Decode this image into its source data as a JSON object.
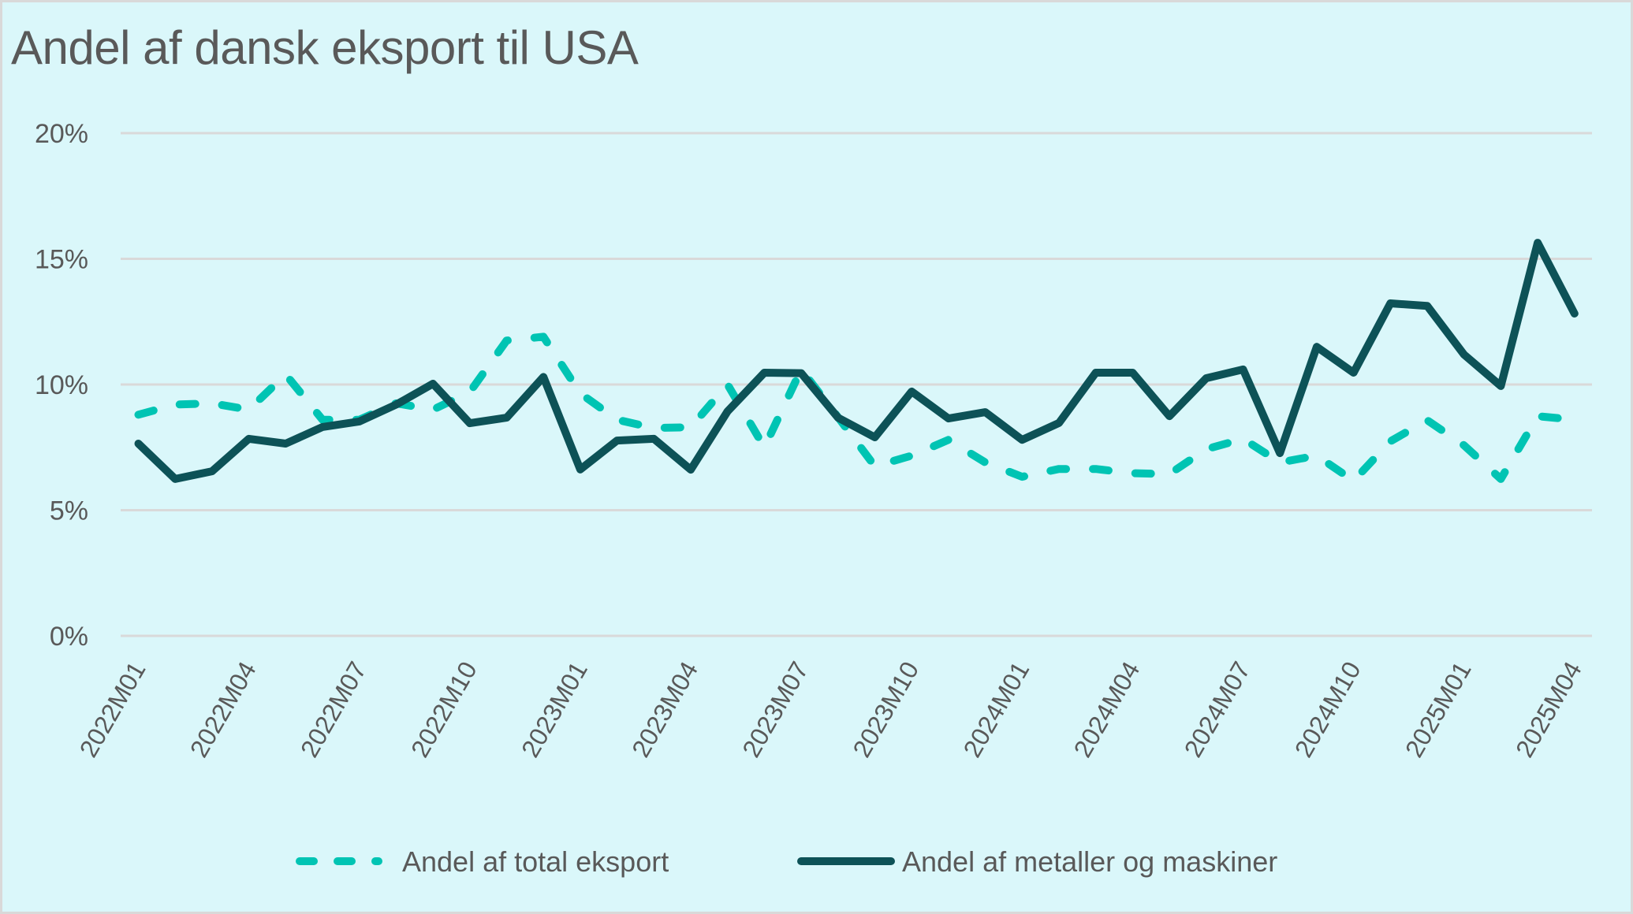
{
  "chart_data": {
    "type": "line",
    "title": "Andel af dansk eksport til USA",
    "xlabel": "",
    "ylabel": "",
    "ylim": [
      0,
      20
    ],
    "yticks": [
      0,
      5,
      10,
      15,
      20
    ],
    "ytick_labels": [
      "0%",
      "5%",
      "10%",
      "15%",
      "20%"
    ],
    "grid": true,
    "legend_position": "bottom-center",
    "x": [
      "2022M01",
      "2022M02",
      "2022M03",
      "2022M04",
      "2022M05",
      "2022M06",
      "2022M07",
      "2022M08",
      "2022M09",
      "2022M10",
      "2022M11",
      "2022M12",
      "2023M01",
      "2023M02",
      "2023M03",
      "2023M04",
      "2023M05",
      "2023M06",
      "2023M07",
      "2023M08",
      "2023M09",
      "2023M10",
      "2023M11",
      "2023M12",
      "2024M01",
      "2024M02",
      "2024M03",
      "2024M04",
      "2024M05",
      "2024M06",
      "2024M07",
      "2024M08",
      "2024M09",
      "2024M10",
      "2024M11",
      "2024M12",
      "2025M01",
      "2025M02",
      "2025M03",
      "2025M04"
    ],
    "xtick_labels": [
      "2022M01",
      "2022M04",
      "2022M07",
      "2022M10",
      "2023M01",
      "2023M04",
      "2023M07",
      "2023M10",
      "2024M01",
      "2024M04",
      "2024M07",
      "2024M10",
      "2025M01",
      "2025M04"
    ],
    "series": [
      {
        "name": "Andel af total eksport",
        "style": "dashed",
        "color": "#00c4b3",
        "values": [
          8.8,
          9.2,
          9.25,
          9.0,
          10.4,
          8.6,
          8.6,
          9.25,
          9.0,
          9.7,
          11.75,
          11.9,
          9.65,
          8.6,
          8.27,
          8.3,
          10.0,
          7.5,
          10.6,
          8.7,
          6.75,
          7.17,
          7.8,
          6.9,
          6.33,
          6.64,
          6.64,
          6.47,
          6.44,
          7.43,
          7.84,
          6.9,
          7.17,
          6.17,
          7.74,
          8.58,
          7.58,
          6.24,
          8.74,
          8.6
        ]
      },
      {
        "name": "Andel af metaller og maskiner",
        "style": "solid",
        "color": "#0d5257",
        "values": [
          7.65,
          6.24,
          6.55,
          7.84,
          7.65,
          8.31,
          8.53,
          9.2,
          10.03,
          8.46,
          8.68,
          10.3,
          6.62,
          7.77,
          7.84,
          6.61,
          8.93,
          10.47,
          10.45,
          8.68,
          7.9,
          9.72,
          8.65,
          8.9,
          7.8,
          8.47,
          10.47,
          10.47,
          8.74,
          10.25,
          10.6,
          7.27,
          11.5,
          10.47,
          13.23,
          13.13,
          11.19,
          9.94,
          15.64,
          12.82
        ]
      }
    ]
  }
}
